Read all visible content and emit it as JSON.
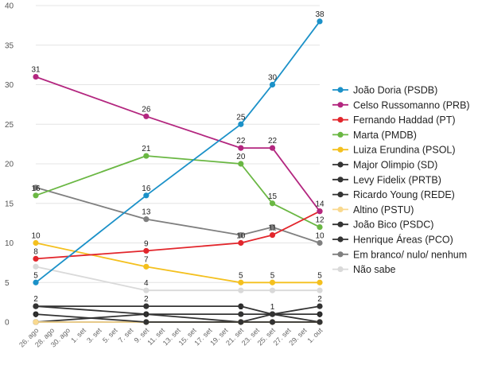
{
  "chart_data": {
    "type": "line",
    "x": [
      "26. ago",
      "28. ago",
      "30. ago",
      "1. set",
      "3. set",
      "5. set",
      "7. set",
      "9. set",
      "11. set",
      "13. set",
      "15. set",
      "17. set",
      "19. set",
      "21. set",
      "23. set",
      "25. set",
      "27. set",
      "29. set",
      "1. out"
    ],
    "ylim": [
      0,
      40
    ],
    "yticks": [
      0,
      5,
      10,
      15,
      20,
      25,
      30,
      35,
      40
    ],
    "grid": true,
    "legend_position": "right",
    "series": [
      {
        "name": "João Doria (PSDB)",
        "color": "#1b91c8",
        "points": [
          [
            "26. ago",
            5
          ],
          [
            "9. set",
            16
          ],
          [
            "21. set",
            25
          ],
          [
            "25. set",
            30
          ],
          [
            "1. out",
            38
          ]
        ]
      },
      {
        "name": "Celso Russomanno (PRB)",
        "color": "#b3267f",
        "points": [
          [
            "26. ago",
            31
          ],
          [
            "9. set",
            26
          ],
          [
            "21. set",
            22
          ],
          [
            "25. set",
            22
          ],
          [
            "1. out",
            14
          ]
        ]
      },
      {
        "name": "Fernando Haddad (PT)",
        "color": "#e2262c",
        "points": [
          [
            "26. ago",
            8
          ],
          [
            "9. set",
            9
          ],
          [
            "21. set",
            10
          ],
          [
            "25. set",
            11
          ],
          [
            "1. out",
            14
          ]
        ]
      },
      {
        "name": "Marta (PMDB)",
        "color": "#6ab743",
        "points": [
          [
            "26. ago",
            16
          ],
          [
            "9. set",
            21
          ],
          [
            "21. set",
            20
          ],
          [
            "25. set",
            15
          ],
          [
            "1. out",
            12
          ]
        ]
      },
      {
        "name": "Luiza Erundina (PSOL)",
        "color": "#f4c01e",
        "points": [
          [
            "26. ago",
            10
          ],
          [
            "9. set",
            7
          ],
          [
            "21. set",
            5
          ],
          [
            "25. set",
            5
          ],
          [
            "1. out",
            5
          ]
        ]
      },
      {
        "name": "Major Olimpio (SD)",
        "color": "#333333",
        "points": [
          [
            "26. ago",
            2
          ],
          [
            "9. set",
            2
          ],
          [
            "21. set",
            2
          ],
          [
            "25. set",
            1
          ],
          [
            "1. out",
            2
          ]
        ]
      },
      {
        "name": "Levy Fidelix (PRTB)",
        "color": "#333333",
        "points": [
          [
            "26. ago",
            1
          ],
          [
            "9. set",
            0
          ],
          [
            "21. set",
            0
          ],
          [
            "25. set",
            0
          ],
          [
            "1. out",
            0
          ]
        ]
      },
      {
        "name": "Ricardo Young (REDE)",
        "color": "#333333",
        "points": [
          [
            "26. ago",
            2
          ],
          [
            "9. set",
            1
          ],
          [
            "21. set",
            1
          ],
          [
            "25. set",
            1
          ],
          [
            "1. out",
            1
          ]
        ]
      },
      {
        "name": "Altino (PSTU)",
        "color": "#f9d98f",
        "points": [
          [
            "26. ago",
            0
          ],
          [
            "9. set",
            0
          ],
          [
            "21. set",
            0
          ],
          [
            "25. set",
            0
          ],
          [
            "1. out",
            0
          ]
        ]
      },
      {
        "name": "João Bico (PSDC)",
        "color": "#333333",
        "points": [
          [
            "26. ago",
            0
          ],
          [
            "9. set",
            0
          ],
          [
            "21. set",
            0
          ],
          [
            "25. set",
            0
          ],
          [
            "1. out",
            0
          ]
        ]
      },
      {
        "name": "Henrique Áreas (PCO)",
        "color": "#333333",
        "points": [
          [
            "26. ago",
            0
          ],
          [
            "9. set",
            1
          ],
          [
            "21. set",
            0
          ],
          [
            "25. set",
            1
          ],
          [
            "1. out",
            0
          ]
        ]
      },
      {
        "name": "Em branco/ nulo/ nenhum",
        "color": "#7f7f7f",
        "points": [
          [
            "26. ago",
            17
          ],
          [
            "9. set",
            13
          ],
          [
            "21. set",
            11
          ],
          [
            "25. set",
            12
          ],
          [
            "1. out",
            10
          ]
        ]
      },
      {
        "name": "Não sabe",
        "color": "#d9d9d9",
        "points": [
          [
            "26. ago",
            7
          ],
          [
            "9. set",
            4
          ],
          [
            "21. set",
            4
          ],
          [
            "25. set",
            4
          ],
          [
            "1. out",
            4
          ]
        ]
      }
    ],
    "data_labels": [
      {
        "x": "26. ago",
        "y": 31,
        "text": "31"
      },
      {
        "x": "26. ago",
        "y": 16,
        "text": "16"
      },
      {
        "x": "26. ago",
        "y": 10,
        "text": "10"
      },
      {
        "x": "26. ago",
        "y": 8,
        "text": "8"
      },
      {
        "x": "26. ago",
        "y": 5,
        "text": "5"
      },
      {
        "x": "26. ago",
        "y": 2,
        "text": "2"
      },
      {
        "x": "26. ago",
        "y": 0,
        "text": "0"
      },
      {
        "x": "9. set",
        "y": 26,
        "text": "26"
      },
      {
        "x": "9. set",
        "y": 21,
        "text": "21"
      },
      {
        "x": "9. set",
        "y": 16,
        "text": "16"
      },
      {
        "x": "9. set",
        "y": 13,
        "text": "13"
      },
      {
        "x": "9. set",
        "y": 9,
        "text": "9"
      },
      {
        "x": "9. set",
        "y": 7,
        "text": "7"
      },
      {
        "x": "9. set",
        "y": 4,
        "text": "4"
      },
      {
        "x": "9. set",
        "y": 2,
        "text": "2"
      },
      {
        "x": "9. set",
        "y": 0,
        "text": "0"
      },
      {
        "x": "21. set",
        "y": 25,
        "text": "25"
      },
      {
        "x": "21. set",
        "y": 22,
        "text": "22"
      },
      {
        "x": "21. set",
        "y": 20,
        "text": "20"
      },
      {
        "x": "21. set",
        "y": 10,
        "text": "10"
      },
      {
        "x": "21. set",
        "y": 5,
        "text": "5"
      },
      {
        "x": "21. set",
        "y": 1,
        "text": "1"
      },
      {
        "x": "25. set",
        "y": 30,
        "text": "30"
      },
      {
        "x": "25. set",
        "y": 22,
        "text": "22"
      },
      {
        "x": "25. set",
        "y": 15,
        "text": "15"
      },
      {
        "x": "25. set",
        "y": 11,
        "text": "11"
      },
      {
        "x": "25. set",
        "y": 5,
        "text": "5"
      },
      {
        "x": "25. set",
        "y": 1,
        "text": "1"
      },
      {
        "x": "1. out",
        "y": 38,
        "text": "38"
      },
      {
        "x": "1. out",
        "y": 14,
        "text": "14"
      },
      {
        "x": "1. out",
        "y": 12,
        "text": "12"
      },
      {
        "x": "1. out",
        "y": 10,
        "text": "10"
      },
      {
        "x": "1. out",
        "y": 5,
        "text": "5"
      },
      {
        "x": "1. out",
        "y": 2,
        "text": "2"
      },
      {
        "x": "1. out",
        "y": 0,
        "text": "0"
      }
    ]
  }
}
